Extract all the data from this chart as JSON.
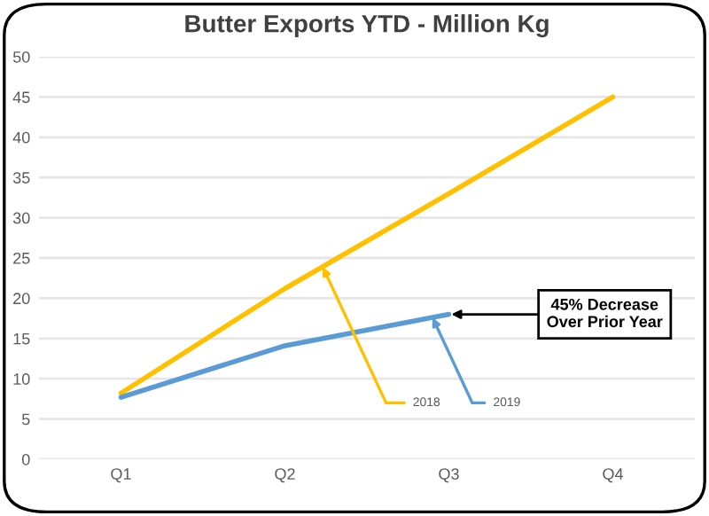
{
  "chart_data": {
    "type": "line",
    "title": "Butter Exports YTD - Million Kg",
    "categories": [
      "Q1",
      "Q2",
      "Q3",
      "Q4"
    ],
    "series": [
      {
        "name": "2018",
        "color": "#ffc000",
        "values": [
          8.2,
          21.2,
          33,
          45
        ]
      },
      {
        "name": "2019",
        "color": "#5b9bd5",
        "values": [
          7.7,
          14.1,
          18,
          null
        ]
      }
    ],
    "ylim": [
      0,
      50
    ],
    "yticks": [
      0,
      5,
      10,
      15,
      20,
      25,
      30,
      35,
      40,
      45,
      50
    ],
    "grid": "y",
    "legend": false,
    "annotations": [
      {
        "text": "45% Decrease\nOver Prior Year",
        "x": "Q3",
        "y": 18
      }
    ]
  }
}
